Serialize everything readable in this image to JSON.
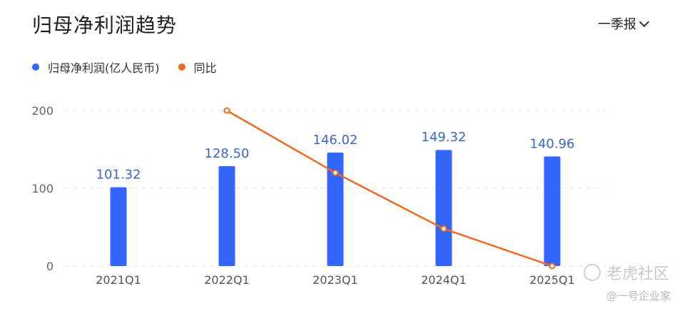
{
  "header": {
    "title": "归母净利润趋势",
    "period_label": "一季报"
  },
  "legend": [
    {
      "label": "归母净利润(亿人民币)",
      "color": "#3366ff"
    },
    {
      "label": "同比",
      "color": "#ee6a1e"
    }
  ],
  "watermark": {
    "brand": "老虎社区",
    "source": "@一号企业家"
  },
  "chart_data": {
    "type": "bar",
    "categories": [
      "2021Q1",
      "2022Q1",
      "2023Q1",
      "2024Q1",
      "2025Q1"
    ],
    "series": [
      {
        "name": "归母净利润(亿人民币)",
        "type": "bar",
        "values": [
          101.32,
          128.5,
          146.02,
          149.32,
          140.96
        ],
        "labels": [
          "101.32",
          "128.50",
          "146.02",
          "149.32",
          "140.96"
        ],
        "color": "#3366ff"
      },
      {
        "name": "同比",
        "type": "line",
        "values": [
          null,
          200,
          120,
          48,
          0
        ],
        "color": "#ee6a1e"
      }
    ],
    "yticks": [
      0,
      100,
      200
    ],
    "ylim": [
      0,
      200
    ],
    "grid": true,
    "legend_position": "top-left"
  }
}
